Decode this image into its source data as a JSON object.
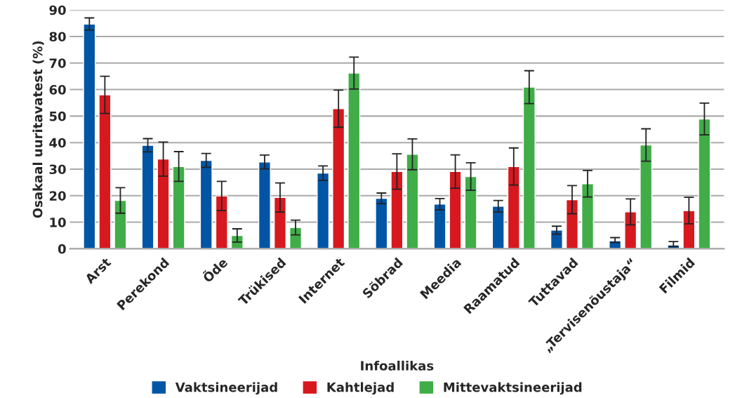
{
  "chart_data": {
    "type": "bar",
    "xlabel": "Infoallikas",
    "ylabel": "Osakaal uuritavatest (%)",
    "categories": [
      "Arst",
      "Perekond",
      "Õde",
      "Trükised",
      "Internet",
      "Sõbrad",
      "Meedia",
      "Raamatud",
      "Tuttavad",
      "„Tervisenõustaja“",
      "Filmid"
    ],
    "series": [
      {
        "name": "Vaktsineerijad",
        "color": "#0055a5",
        "values": [
          84.7,
          39,
          33.3,
          32.7,
          28.5,
          19,
          16.8,
          16,
          7,
          3,
          1.4
        ],
        "errors": [
          2.3,
          2.5,
          2.6,
          2.6,
          2.7,
          2,
          2.1,
          2.2,
          1.5,
          [
            2.4,
            4.2
          ],
          [
            0.9,
            2.7
          ]
        ]
      },
      {
        "name": "Kahtlejad",
        "color": "#d7191f",
        "values": [
          58,
          33.8,
          19.9,
          19.3,
          52.8,
          29.1,
          29.1,
          31,
          18.5,
          13.9,
          14.4
        ],
        "errors": [
          7,
          6.4,
          5.5,
          5.5,
          7,
          6.7,
          6.3,
          7,
          5.3,
          4.9,
          5
        ]
      },
      {
        "name": "Mittevaktsineerijad",
        "color": "#40ad48",
        "values": [
          18.2,
          31,
          5,
          8,
          66.2,
          35.6,
          27.2,
          60.9,
          24.5,
          39.1,
          48.9
        ],
        "errors": [
          4.8,
          5.6,
          2.5,
          2.8,
          6,
          5.8,
          5.2,
          6.2,
          5,
          6.1,
          6
        ]
      }
    ],
    "ylim": [
      0,
      90
    ],
    "yticks": [
      0,
      10,
      20,
      30,
      40,
      50,
      60,
      70,
      80,
      90
    ],
    "grid": "y",
    "legend": "bottom"
  }
}
